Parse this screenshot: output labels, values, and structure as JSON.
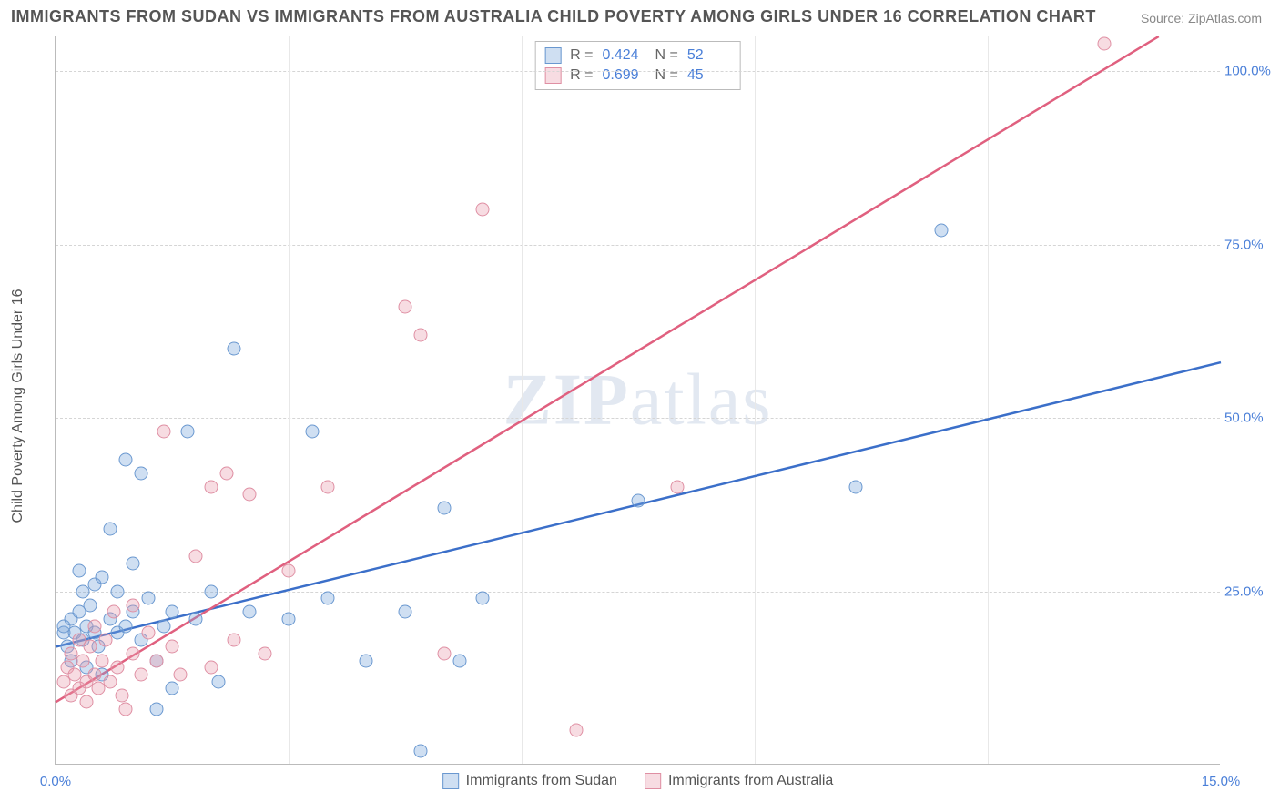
{
  "title": "IMMIGRANTS FROM SUDAN VS IMMIGRANTS FROM AUSTRALIA CHILD POVERTY AMONG GIRLS UNDER 16 CORRELATION CHART",
  "source": "Source: ZipAtlas.com",
  "ylabel": "Child Poverty Among Girls Under 16",
  "watermark_a": "ZIP",
  "watermark_b": "atlas",
  "chart": {
    "type": "scatter",
    "xlim": [
      0,
      15
    ],
    "ylim": [
      0,
      105
    ],
    "xticks": [
      0.0,
      15.0
    ],
    "yticks": [
      25.0,
      50.0,
      75.0,
      100.0
    ],
    "xtick_labels": [
      "0.0%",
      "15.0%"
    ],
    "ytick_labels": [
      "25.0%",
      "50.0%",
      "75.0%",
      "100.0%"
    ],
    "grid_color": "#d5d5d5",
    "axis_color": "#bbbbbb",
    "background_color": "#ffffff",
    "series": [
      {
        "name": "Immigrants from Sudan",
        "color_fill": "rgba(118,162,219,0.35)",
        "color_stroke": "#6a98d0",
        "line_color": "#3b6fc9",
        "r": 0.424,
        "n": 52,
        "regression": {
          "x1": 0,
          "y1": 17,
          "x2": 15,
          "y2": 58
        },
        "points": [
          [
            0.1,
            19
          ],
          [
            0.1,
            20
          ],
          [
            0.15,
            17
          ],
          [
            0.2,
            21
          ],
          [
            0.2,
            15
          ],
          [
            0.25,
            19
          ],
          [
            0.3,
            28
          ],
          [
            0.3,
            22
          ],
          [
            0.35,
            18
          ],
          [
            0.35,
            25
          ],
          [
            0.4,
            20
          ],
          [
            0.4,
            14
          ],
          [
            0.45,
            23
          ],
          [
            0.5,
            26
          ],
          [
            0.5,
            19
          ],
          [
            0.55,
            17
          ],
          [
            0.6,
            13
          ],
          [
            0.6,
            27
          ],
          [
            0.7,
            34
          ],
          [
            0.7,
            21
          ],
          [
            0.8,
            19
          ],
          [
            0.8,
            25
          ],
          [
            0.9,
            44
          ],
          [
            0.9,
            20
          ],
          [
            1.0,
            22
          ],
          [
            1.0,
            29
          ],
          [
            1.1,
            42
          ],
          [
            1.1,
            18
          ],
          [
            1.2,
            24
          ],
          [
            1.3,
            15
          ],
          [
            1.3,
            8
          ],
          [
            1.4,
            20
          ],
          [
            1.5,
            22
          ],
          [
            1.5,
            11
          ],
          [
            1.7,
            48
          ],
          [
            1.8,
            21
          ],
          [
            2.0,
            25
          ],
          [
            2.1,
            12
          ],
          [
            2.3,
            60
          ],
          [
            2.5,
            22
          ],
          [
            3.0,
            21
          ],
          [
            3.3,
            48
          ],
          [
            3.5,
            24
          ],
          [
            4.0,
            15
          ],
          [
            4.5,
            22
          ],
          [
            4.7,
            2
          ],
          [
            5.0,
            37
          ],
          [
            5.2,
            15
          ],
          [
            5.5,
            24
          ],
          [
            7.5,
            38
          ],
          [
            10.3,
            40
          ],
          [
            11.4,
            77
          ]
        ]
      },
      {
        "name": "Immigrants from Australia",
        "color_fill": "rgba(232,154,172,0.35)",
        "color_stroke": "#df8fa3",
        "line_color": "#e0607f",
        "r": 0.699,
        "n": 45,
        "regression": {
          "x1": 0,
          "y1": 9,
          "x2": 14.2,
          "y2": 105
        },
        "points": [
          [
            0.1,
            12
          ],
          [
            0.15,
            14
          ],
          [
            0.2,
            10
          ],
          [
            0.2,
            16
          ],
          [
            0.25,
            13
          ],
          [
            0.3,
            11
          ],
          [
            0.3,
            18
          ],
          [
            0.35,
            15
          ],
          [
            0.4,
            12
          ],
          [
            0.4,
            9
          ],
          [
            0.45,
            17
          ],
          [
            0.5,
            13
          ],
          [
            0.5,
            20
          ],
          [
            0.55,
            11
          ],
          [
            0.6,
            15
          ],
          [
            0.65,
            18
          ],
          [
            0.7,
            12
          ],
          [
            0.75,
            22
          ],
          [
            0.8,
            14
          ],
          [
            0.85,
            10
          ],
          [
            0.9,
            8
          ],
          [
            1.0,
            16
          ],
          [
            1.0,
            23
          ],
          [
            1.1,
            13
          ],
          [
            1.2,
            19
          ],
          [
            1.3,
            15
          ],
          [
            1.4,
            48
          ],
          [
            1.5,
            17
          ],
          [
            1.6,
            13
          ],
          [
            1.8,
            30
          ],
          [
            2.0,
            40
          ],
          [
            2.0,
            14
          ],
          [
            2.2,
            42
          ],
          [
            2.3,
            18
          ],
          [
            2.5,
            39
          ],
          [
            2.7,
            16
          ],
          [
            3.0,
            28
          ],
          [
            3.5,
            40
          ],
          [
            4.5,
            66
          ],
          [
            4.7,
            62
          ],
          [
            5.0,
            16
          ],
          [
            5.5,
            80
          ],
          [
            6.7,
            5
          ],
          [
            8.0,
            40
          ],
          [
            13.5,
            104
          ]
        ]
      }
    ],
    "vgrid": [
      3.0,
      6.0,
      9.0,
      12.0
    ]
  },
  "legend_top": {
    "r_label": "R =",
    "n_label": "N ="
  },
  "legend_bottom": {
    "series_a": "Immigrants from Sudan",
    "series_b": "Immigrants from Australia"
  }
}
